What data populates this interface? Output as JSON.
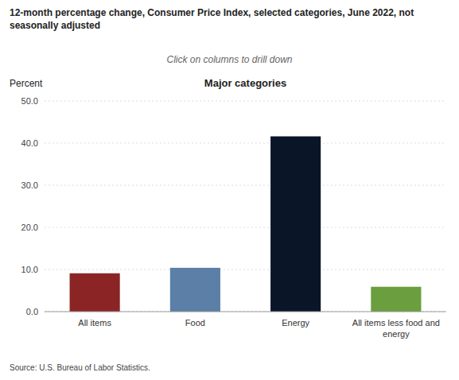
{
  "chart_data": {
    "type": "bar",
    "title": "12-month percentage change, Consumer Price Index, selected categories, June 2022, not seasonally adjusted",
    "subtitle": "Click on columns to drill down",
    "y_label": "Percent",
    "x_label": "Major categories",
    "annotations": [
      "Source: U.S. Bureau of Labor Statistics."
    ],
    "categories": [
      "All items",
      "Food",
      "Energy",
      "All items less food and\nenergy"
    ],
    "values": [
      9.1,
      10.4,
      41.6,
      5.9
    ],
    "colors": [
      "#8B2525",
      "#5B7FA6",
      "#0A1628",
      "#6B9E3E"
    ],
    "ylim": [
      0,
      50
    ],
    "yticks": [
      {
        "value": 0,
        "label": "0.0"
      },
      {
        "value": 10,
        "label": "10.0"
      },
      {
        "value": 20,
        "label": "20.0"
      },
      {
        "value": 30,
        "label": "30.0"
      },
      {
        "value": 40,
        "label": "40.0"
      },
      {
        "value": 50,
        "label": "50.0"
      }
    ],
    "grid": true
  }
}
